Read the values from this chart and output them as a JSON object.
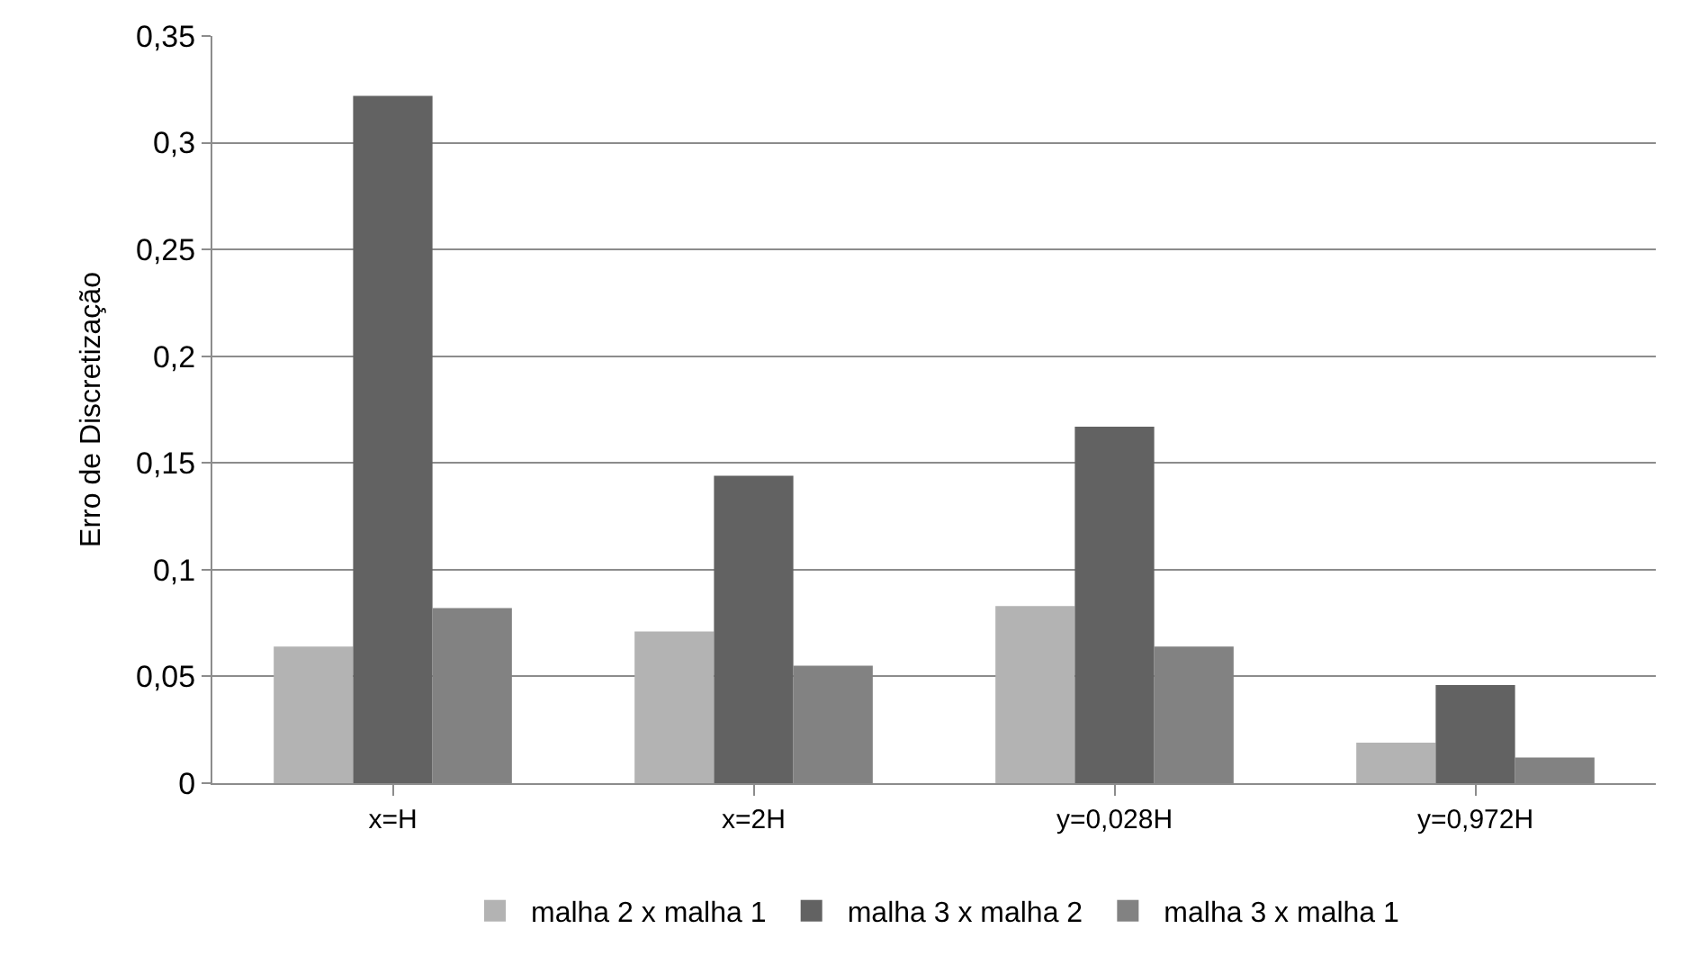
{
  "chart_data": {
    "type": "bar",
    "ylabel": "Erro de Discretização",
    "categories": [
      "x=H",
      "x=2H",
      "y=0,028H",
      "y=0,972H"
    ],
    "series": [
      {
        "name": "malha 2 x malha 1",
        "color": "#b3b3b3",
        "values": [
          0.064,
          0.071,
          0.083,
          0.019
        ]
      },
      {
        "name": "malha 3 x malha 2",
        "color": "#626262",
        "values": [
          0.322,
          0.144,
          0.167,
          0.046
        ]
      },
      {
        "name": "malha 3 x malha 1",
        "color": "#828282",
        "values": [
          0.082,
          0.055,
          0.064,
          0.012
        ]
      }
    ],
    "ylim": [
      0,
      0.35
    ],
    "yticks": [
      {
        "value": 0,
        "label": "0"
      },
      {
        "value": 0.05,
        "label": "0,05"
      },
      {
        "value": 0.1,
        "label": "0,1"
      },
      {
        "value": 0.15,
        "label": "0,15"
      },
      {
        "value": 0.2,
        "label": "0,2"
      },
      {
        "value": 0.25,
        "label": "0,25"
      },
      {
        "value": 0.3,
        "label": "0,3"
      },
      {
        "value": 0.35,
        "label": "0,35"
      }
    ],
    "grid": "y",
    "legend": "bottom"
  }
}
